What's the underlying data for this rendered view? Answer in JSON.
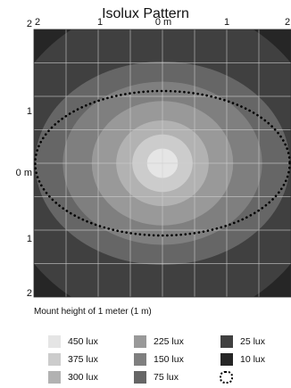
{
  "chart_data": {
    "type": "heatmap",
    "title": "Isolux Pattern",
    "x_ticks": [
      "2",
      "1",
      "0 m",
      "1",
      "2"
    ],
    "y_ticks": [
      "2",
      "1",
      "0 m",
      "1",
      "2"
    ],
    "x_range": [
      -2,
      2
    ],
    "y_range": [
      -2,
      2
    ],
    "grid": true,
    "caption": "Mount height of 1 meter (1 m)",
    "contours": [
      {
        "label": "75 lux",
        "color": "#666666",
        "semi_axes_m": [
          1.98,
          1.52
        ]
      },
      {
        "label": "150 lux",
        "color": "#7f7f7f",
        "semi_axes_m": [
          1.55,
          1.22
        ]
      },
      {
        "label": "225 lux",
        "color": "#999999",
        "semi_axes_m": [
          1.1,
          0.93
        ]
      },
      {
        "label": "300 lux",
        "color": "#b2b2b2",
        "semi_axes_m": [
          0.72,
          0.64
        ]
      },
      {
        "label": "375 lux",
        "color": "#cccccc",
        "semi_axes_m": [
          0.47,
          0.43
        ]
      },
      {
        "label": "450 lux",
        "color": "#e5e5e5",
        "semi_axes_m": [
          0.24,
          0.22
        ]
      }
    ],
    "outer_levels": [
      {
        "label": "25 lux",
        "color": "#404040"
      },
      {
        "label": "10 lux",
        "color": "#262626"
      }
    ],
    "dotted_boundary": {
      "semi_axes_m": [
        1.98,
        1.08
      ]
    },
    "legend": [
      {
        "label": "450 lux",
        "color": "#e5e5e5"
      },
      {
        "label": "375 lux",
        "color": "#cccccc"
      },
      {
        "label": "300 lux",
        "color": "#b2b2b2"
      },
      {
        "label": "225 lux",
        "color": "#999999"
      },
      {
        "label": "150 lux",
        "color": "#7f7f7f"
      },
      {
        "label": "75 lux",
        "color": "#666666"
      },
      {
        "label": "25 lux",
        "color": "#404040"
      },
      {
        "label": "10 lux",
        "color": "#262626"
      },
      {
        "label": "",
        "color": "dotted"
      }
    ]
  }
}
